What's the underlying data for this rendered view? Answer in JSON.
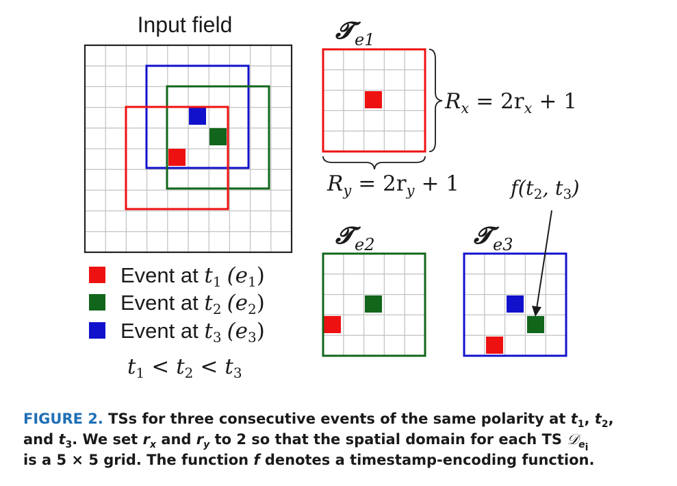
{
  "input_field": {
    "title": "Input field",
    "colors": {
      "e1": "#ee1111",
      "e2": "#11661b",
      "e3": "#1111cc"
    }
  },
  "legend": [
    {
      "label": "Event at ",
      "var": "t",
      "sub": "1",
      "tag": "(e",
      "tag_sub": "1",
      "close": ")",
      "color": "#ee1111"
    },
    {
      "label": "Event at ",
      "var": "t",
      "sub": "2",
      "tag": "(e",
      "tag_sub": "2",
      "close": ")",
      "color": "#11661b"
    },
    {
      "label": "Event at ",
      "var": "t",
      "sub": "3",
      "tag": "(e",
      "tag_sub": "3",
      "close": ")",
      "color": "#1111cc"
    }
  ],
  "ordering": {
    "t": "t",
    "s1": "1",
    "s2": "2",
    "s3": "3",
    "lt": "<"
  },
  "ts": {
    "symbol": "𝓣",
    "e1_sub": "e1",
    "e2_sub": "e2",
    "e3_sub": "e3",
    "rx_lhs": "R",
    "rx_lhs_sub": "x",
    "rx_rhs": "= 2r",
    "rx_rhs_sub": "x",
    "rx_tail": "+ 1",
    "ry_lhs": "R",
    "ry_lhs_sub": "y",
    "ry_rhs": "= 2r",
    "ry_rhs_sub": "y",
    "ry_tail": "+ 1",
    "f_label": "f(t",
    "f_sub1": "2",
    "f_comma": ", t",
    "f_sub2": "3",
    "f_close": ")"
  },
  "caption": {
    "label": "FIGURE 2.",
    "text1": " TSs for three consecutive events of the same polarity at ",
    "t": "t",
    "s1": "1",
    "sep1": ", ",
    "s2": "2",
    "sep2": ",",
    "line2a": "and ",
    "s3": "3",
    "line2b": ". We set ",
    "r": "r",
    "rx": "x",
    "and": " and ",
    "ry": "y",
    "line2c": " to 2 so that the spatial domain for each TS ",
    "D": "𝒟",
    "De": "e",
    "Di": "i",
    "line3a": "is a 5 × 5 grid. The function ",
    "f": "f",
    "line3b": " denotes a timestamp-encoding function."
  }
}
